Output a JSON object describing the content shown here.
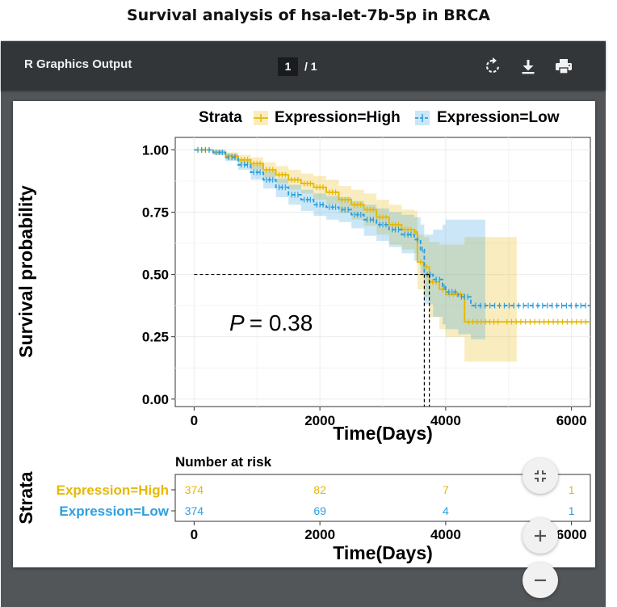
{
  "page_title": "Survival analysis of hsa-let-7b-5p in BRCA",
  "viewer": {
    "title": "R Graphics Output",
    "current_page": "1",
    "page_total": "/ 1"
  },
  "icons": {
    "rotate": "rotate-icon",
    "download": "download-icon",
    "print": "print-icon",
    "fit": "fit-page-icon",
    "zoom_in": "zoom-in-icon",
    "zoom_out": "zoom-out-icon"
  },
  "colors": {
    "high": "#E7B800",
    "low": "#2E9FDF",
    "toolbar": "#323639",
    "viewer_bg": "#525659"
  },
  "chart_data": [
    {
      "type": "line",
      "subtype": "kaplan-meier",
      "xlabel": "Time(Days)",
      "ylabel": "Survival probability",
      "xlim": [
        -300,
        6300
      ],
      "ylim": [
        -0.03,
        1.05
      ],
      "xticks": [
        0,
        2000,
        4000,
        6000
      ],
      "yticks": [
        0.0,
        0.25,
        0.5,
        0.75,
        1.0
      ],
      "xtick_labels": [
        "0",
        "2000",
        "4000",
        "6000"
      ],
      "ytick_labels": [
        "0.00",
        "0.25",
        "0.50",
        "0.75",
        "1.00"
      ],
      "grid": true,
      "legend": {
        "title": "Strata",
        "position": "top",
        "entries": [
          "Expression=High",
          "Expression=Low"
        ]
      },
      "annotation": {
        "p_label": "P",
        "p_value": "= 0.38",
        "x": 400,
        "y": 0.28
      },
      "median_lines": {
        "y": 0.5,
        "high_x": 3740,
        "low_x": 3660
      },
      "series": [
        {
          "name": "Expression=High",
          "color": "#E7B800",
          "x": [
            0,
            300,
            500,
            700,
            900,
            1100,
            1300,
            1500,
            1700,
            1900,
            2100,
            2300,
            2500,
            2700,
            2900,
            3100,
            3300,
            3500,
            3550,
            3650,
            3740,
            3900,
            4000,
            4300,
            4900,
            6300
          ],
          "y": [
            1.0,
            0.99,
            0.975,
            0.96,
            0.945,
            0.92,
            0.9,
            0.88,
            0.865,
            0.85,
            0.83,
            0.8,
            0.78,
            0.76,
            0.73,
            0.7,
            0.68,
            0.67,
            0.55,
            0.53,
            0.47,
            0.44,
            0.42,
            0.31,
            0.31,
            0.31
          ],
          "ci_upper": [
            1.0,
            1.0,
            0.99,
            0.98,
            0.97,
            0.95,
            0.935,
            0.92,
            0.905,
            0.895,
            0.88,
            0.855,
            0.84,
            0.825,
            0.8,
            0.78,
            0.76,
            0.755,
            0.66,
            0.65,
            0.63,
            0.62,
            0.62,
            0.65,
            0.65,
            null
          ],
          "ci_lower": [
            1.0,
            0.98,
            0.96,
            0.94,
            0.92,
            0.89,
            0.865,
            0.84,
            0.825,
            0.8,
            0.78,
            0.745,
            0.72,
            0.695,
            0.66,
            0.62,
            0.6,
            0.585,
            0.44,
            0.41,
            0.33,
            0.28,
            0.25,
            0.15,
            0.15,
            null
          ]
        },
        {
          "name": "Expression=Low",
          "color": "#2E9FDF",
          "x": [
            0,
            300,
            500,
            700,
            900,
            1100,
            1300,
            1500,
            1700,
            1900,
            2100,
            2300,
            2500,
            2700,
            2900,
            3100,
            3300,
            3500,
            3600,
            3660,
            3800,
            3950,
            4000,
            4200,
            4400,
            6300
          ],
          "y": [
            1.0,
            0.99,
            0.97,
            0.94,
            0.91,
            0.88,
            0.85,
            0.82,
            0.8,
            0.78,
            0.77,
            0.76,
            0.74,
            0.72,
            0.7,
            0.68,
            0.66,
            0.64,
            0.6,
            0.5,
            0.48,
            0.45,
            0.43,
            0.41,
            0.375,
            0.375
          ],
          "ci_upper": [
            1.0,
            1.0,
            0.985,
            0.96,
            0.94,
            0.915,
            0.885,
            0.86,
            0.84,
            0.825,
            0.815,
            0.81,
            0.795,
            0.78,
            0.765,
            0.75,
            0.74,
            0.73,
            0.7,
            0.66,
            0.68,
            0.7,
            0.72,
            0.72,
            0.72,
            null
          ],
          "ci_lower": [
            1.0,
            0.98,
            0.955,
            0.92,
            0.88,
            0.845,
            0.81,
            0.78,
            0.755,
            0.735,
            0.72,
            0.71,
            0.685,
            0.655,
            0.635,
            0.61,
            0.585,
            0.555,
            0.5,
            0.38,
            0.33,
            0.3,
            0.28,
            0.26,
            0.24,
            null
          ]
        }
      ]
    },
    {
      "type": "table",
      "title": "Number at risk",
      "ylabel": "Strata",
      "xlabel": "Time(Days)",
      "times": [
        0,
        2000,
        4000,
        6000
      ],
      "xtick_labels": [
        "0",
        "2000",
        "4000",
        "6000"
      ],
      "rows": [
        {
          "name": "Expression=High",
          "color": "#E7B800",
          "values": [
            "374",
            "82",
            "7",
            "1"
          ]
        },
        {
          "name": "Expression=Low",
          "color": "#2E9FDF",
          "values": [
            "374",
            "69",
            "4",
            "1"
          ]
        }
      ]
    }
  ]
}
